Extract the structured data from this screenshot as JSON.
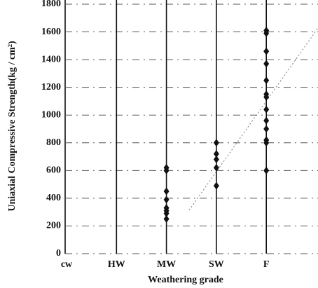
{
  "chart_data": {
    "type": "strip",
    "x_label": "Weathering grade",
    "y_label": "Uniaxial Compressive Strength(kg / cm²)",
    "categories": [
      "cw",
      "HW",
      "MW",
      "SW",
      "F"
    ],
    "values": [
      [],
      [],
      [
        620,
        600,
        450,
        390,
        330,
        310,
        290,
        250
      ],
      [
        800,
        720,
        680,
        620,
        490
      ],
      [
        1610,
        1590,
        1460,
        1370,
        1250,
        1150,
        1130,
        1040,
        960,
        900,
        820,
        800,
        600
      ]
    ],
    "color": "#111111",
    "ylim": [
      0,
      1800
    ],
    "yticks": [
      0,
      200,
      400,
      600,
      800,
      1000,
      1200,
      1400,
      1600,
      1800
    ],
    "grid": true
  }
}
